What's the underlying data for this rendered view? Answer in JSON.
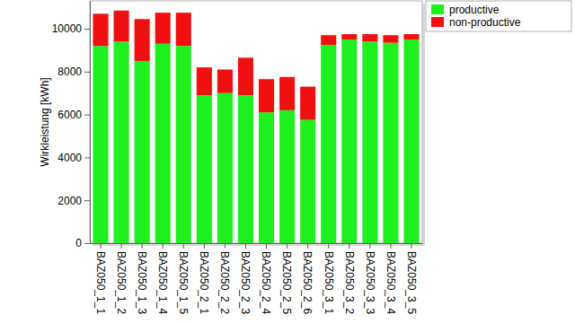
{
  "chart_data": {
    "type": "bar",
    "stacked": true,
    "y_label": "Wirkleistung [kWh]",
    "categories": [
      "BAZ050_1_1",
      "BAZ050_1_2",
      "BAZ050_1_3",
      "BAZ050_1_4",
      "BAZ050_1_5",
      "BAZ050_2_1",
      "BAZ050_2_2",
      "BAZ050_2_3",
      "BAZ050_2_4",
      "BAZ050_2_5",
      "BAZ050_2_6",
      "BAZ050_3_1",
      "BAZ050_3_2",
      "BAZ050_3_3",
      "BAZ050_3_4",
      "BAZ050_3_5"
    ],
    "series": [
      {
        "name": "productive",
        "color": "#1ef01e",
        "values": [
          9200,
          9400,
          8500,
          9300,
          9200,
          6900,
          7000,
          6900,
          6100,
          6200,
          5750,
          9250,
          9500,
          9400,
          9350,
          9500
        ]
      },
      {
        "name": "non-productive",
        "color": "#f01010",
        "values": [
          1500,
          1450,
          1950,
          1450,
          1550,
          1300,
          1100,
          1750,
          1550,
          1550,
          1550,
          450,
          250,
          350,
          350,
          250
        ]
      }
    ],
    "ylim": [
      0,
      11300
    ],
    "yticks": [
      0,
      2000,
      4000,
      6000,
      8000,
      10000
    ],
    "grid": false,
    "legend": "upper right"
  }
}
